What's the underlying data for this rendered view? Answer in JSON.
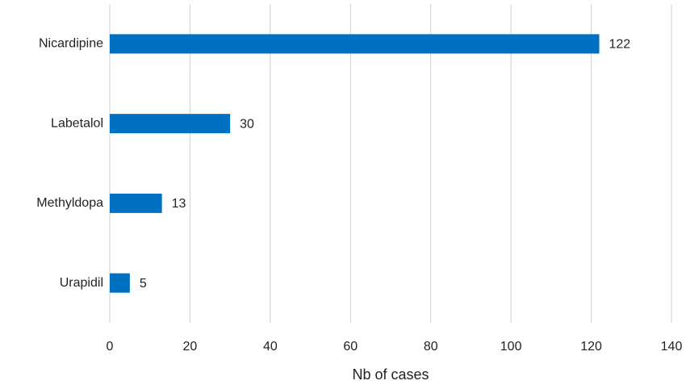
{
  "chart_data": {
    "type": "hbar",
    "x_label": "Nb of cases",
    "categories": [
      "Nicardipine",
      "Labetalol",
      "Methyldopa",
      "Urapidil"
    ],
    "values": [
      122,
      30,
      13,
      5
    ],
    "color": "#0070c0",
    "xlim": [
      0,
      140
    ],
    "xticks": [
      0,
      20,
      40,
      60,
      80,
      100,
      120,
      140
    ],
    "grid": true,
    "data_labels": true
  }
}
